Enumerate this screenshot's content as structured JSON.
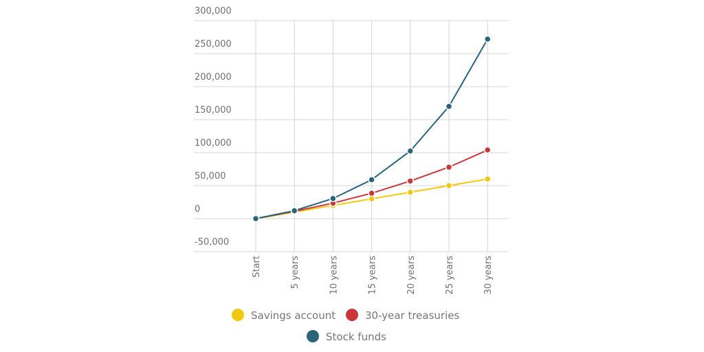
{
  "chart_data": {
    "type": "line",
    "categories": [
      "Start",
      "5 years",
      "10 years",
      "15 years",
      "20 years",
      "25 years",
      "30 years"
    ],
    "series": [
      {
        "name": "Savings account",
        "color": "#f2c80f",
        "values": [
          0,
          10000,
          20000,
          30000,
          40000,
          50000,
          60000
        ]
      },
      {
        "name": "30-year treasuries",
        "color": "#c8383a",
        "values": [
          0,
          11000,
          23500,
          38500,
          57000,
          78000,
          104000
        ]
      },
      {
        "name": "Stock funds",
        "color": "#2a6478",
        "values": [
          0,
          12000,
          30500,
          59000,
          102500,
          170000,
          272000
        ]
      }
    ],
    "ylim": [
      -50000,
      300000
    ],
    "yticks": [
      {
        "value": -50000,
        "label": "-50,000"
      },
      0,
      {
        "value": 50000,
        "label": "50,000"
      },
      {
        "value": 100000,
        "label": "100,000"
      },
      {
        "value": 150000,
        "label": "150,000"
      },
      {
        "value": 200000,
        "label": "200,000"
      },
      {
        "value": 250000,
        "label": "250,000"
      },
      {
        "value": 300000,
        "label": "300,000"
      }
    ],
    "grid": true
  }
}
